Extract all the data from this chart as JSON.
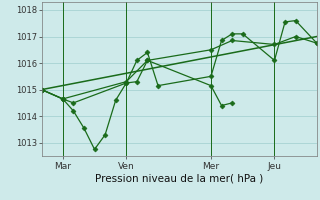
{
  "bg_color": "#ceeaea",
  "grid_color": "#9fcece",
  "line_color": "#1a6b1a",
  "xlabel": "Pression niveau de la mer( hPa )",
  "ylim": [
    1012.5,
    1018.3
  ],
  "yticks": [
    1013,
    1014,
    1015,
    1016,
    1017,
    1018
  ],
  "xtick_labels": [
    "Mar",
    "Ven",
    "Mer",
    "Jeu"
  ],
  "xtick_positions": [
    12,
    48,
    96,
    132
  ],
  "xlim": [
    0,
    156
  ],
  "vlines_x": [
    12,
    48,
    96,
    132
  ],
  "series_dip": {
    "x": [
      0,
      12,
      18,
      24,
      30,
      36,
      42,
      48,
      54,
      60,
      96,
      102,
      108
    ],
    "y": [
      1015.0,
      1014.65,
      1014.2,
      1013.55,
      1012.75,
      1013.3,
      1014.6,
      1015.25,
      1015.3,
      1016.1,
      1015.15,
      1014.4,
      1014.5
    ]
  },
  "series_up": {
    "x": [
      0,
      12,
      18,
      48,
      54,
      60,
      66,
      96,
      102,
      108,
      114,
      132,
      138,
      144,
      156
    ],
    "y": [
      1015.0,
      1014.65,
      1014.5,
      1015.25,
      1016.1,
      1016.4,
      1015.15,
      1015.5,
      1016.85,
      1017.1,
      1017.1,
      1016.1,
      1017.55,
      1017.6,
      1016.75
    ]
  },
  "series_smooth": {
    "x": [
      0,
      12,
      48,
      60,
      96,
      108,
      132,
      144,
      156
    ],
    "y": [
      1015.0,
      1014.65,
      1015.3,
      1016.1,
      1016.5,
      1016.85,
      1016.7,
      1017.0,
      1016.75
    ]
  },
  "trend": {
    "x": [
      0,
      156
    ],
    "y": [
      1015.0,
      1017.0
    ]
  },
  "figsize": [
    3.2,
    2.0
  ],
  "dpi": 100
}
